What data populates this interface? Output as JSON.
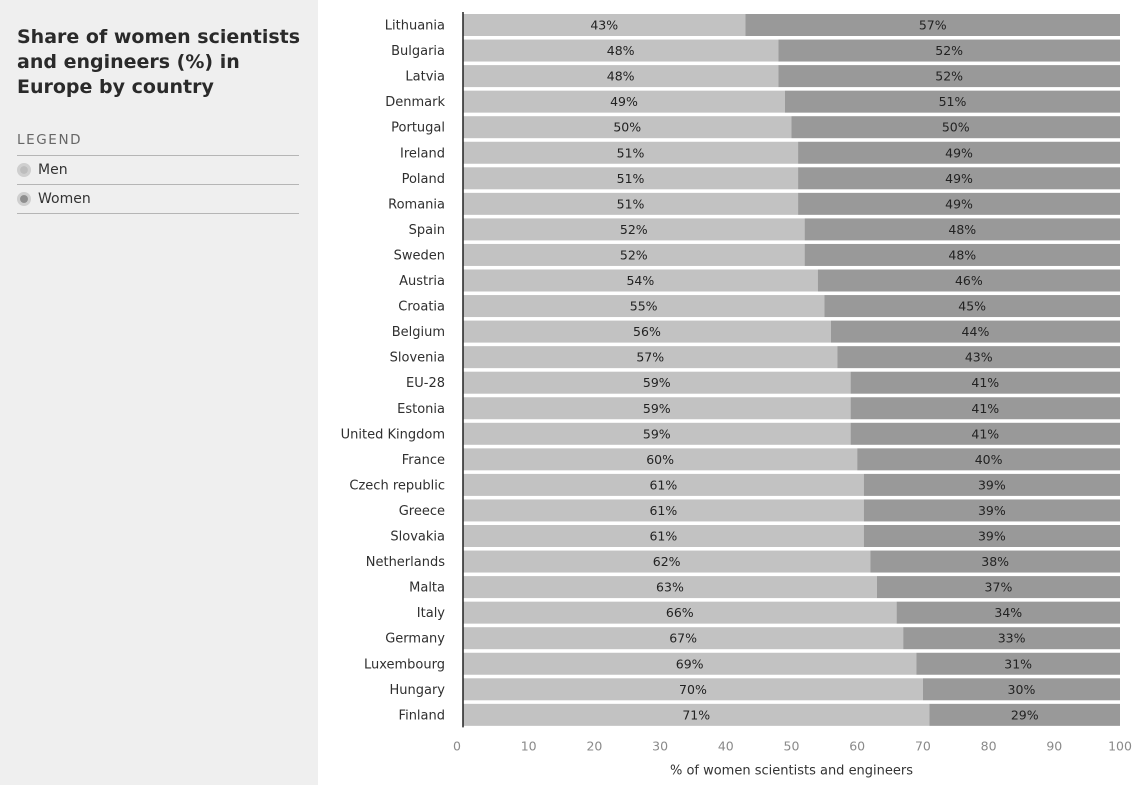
{
  "sidebar": {
    "title": "Share of women scientists and engineers (%) in Europe by country",
    "legend_heading": "LEGEND",
    "legend": [
      {
        "label": "Men",
        "color": "#bdbdbd"
      },
      {
        "label": "Women",
        "color": "#8f8f8f"
      }
    ]
  },
  "chart_data": {
    "type": "bar",
    "orientation": "horizontal",
    "stacked": true,
    "title": "Share of women scientists and engineers (%) in Europe by country",
    "xlabel": "% of women scientists and engineers",
    "ylabel": "",
    "xlim": [
      0,
      100
    ],
    "xticks": [
      0,
      10,
      20,
      30,
      40,
      50,
      60,
      70,
      80,
      90,
      100
    ],
    "grid": false,
    "legend_position": "left panel",
    "categories": [
      "Lithuania",
      "Bulgaria",
      "Latvia",
      "Denmark",
      "Portugal",
      "Ireland",
      "Poland",
      "Romania",
      "Spain",
      "Sweden",
      "Austria",
      "Croatia",
      "Belgium",
      "Slovenia",
      "EU-28",
      "Estonia",
      "United Kingdom",
      "France",
      "Czech republic",
      "Greece",
      "Slovakia",
      "Netherlands",
      "Malta",
      "Italy",
      "Germany",
      "Luxembourg",
      "Hungary",
      "Finland"
    ],
    "series": [
      {
        "name": "Men",
        "color": "#c2c2c2",
        "values": [
          43,
          48,
          48,
          49,
          50,
          51,
          51,
          51,
          52,
          52,
          54,
          55,
          56,
          57,
          59,
          59,
          59,
          60,
          61,
          61,
          61,
          62,
          63,
          66,
          67,
          69,
          70,
          71
        ]
      },
      {
        "name": "Women",
        "color": "#999999",
        "values": [
          57,
          52,
          52,
          51,
          50,
          49,
          49,
          49,
          48,
          48,
          46,
          45,
          44,
          43,
          41,
          41,
          41,
          40,
          39,
          39,
          39,
          38,
          37,
          34,
          33,
          31,
          30,
          29
        ]
      }
    ]
  }
}
